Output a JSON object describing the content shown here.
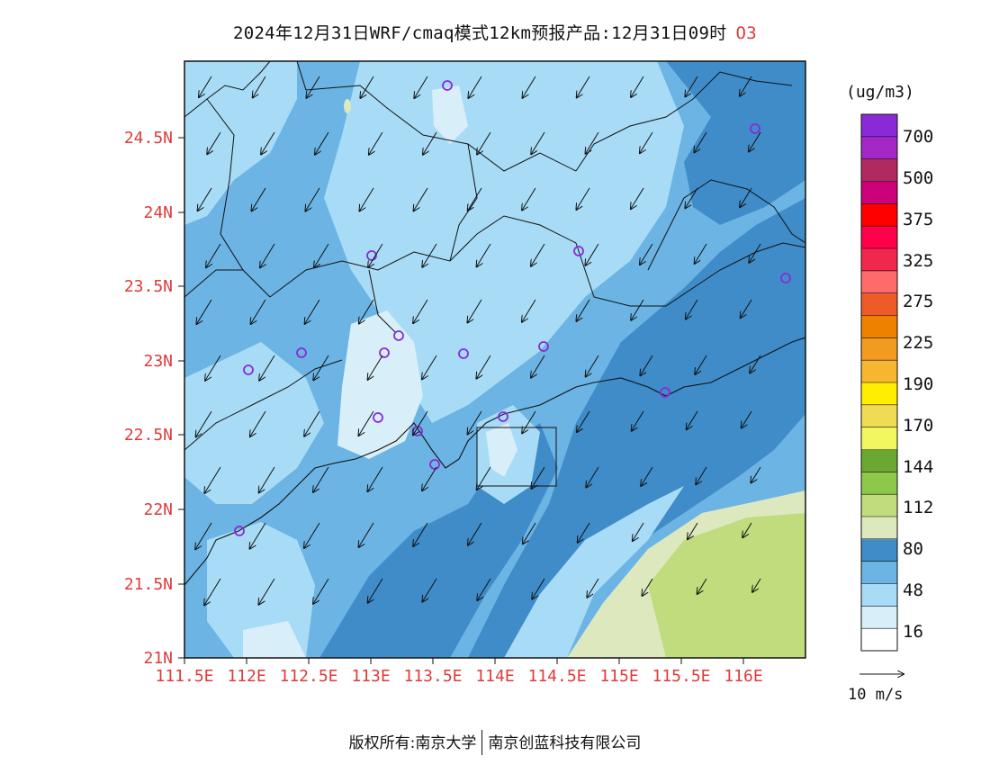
{
  "title": {
    "text": "2024年12月31日WRF/cmaq模式12km预报产品:12月31日09时",
    "species": "O3"
  },
  "map": {
    "lat_ticks": [
      "24.5N",
      "24N",
      "23.5N",
      "23N",
      "22.5N",
      "22N",
      "21.5N",
      "21N"
    ],
    "lon_ticks": [
      "111.5E",
      "112E",
      "112.5E",
      "113E",
      "113.5E",
      "114E",
      "114.5E",
      "115E",
      "115.5E",
      "116E"
    ],
    "extent": {
      "lon": [
        111.5,
        116.5
      ],
      "lat": [
        21.0,
        24.9
      ]
    },
    "wind_direction": "from northeast"
  },
  "legend": {
    "unit": "(ug/m3)",
    "labels": [
      "700",
      "500",
      "375",
      "325",
      "275",
      "225",
      "190",
      "170",
      "144",
      "112",
      "80",
      "48",
      "16"
    ],
    "colors": [
      "#ffffff",
      "#d8effa",
      "#a8dcf6",
      "#6cb4e4",
      "#3f8cc8",
      "#dde8bf",
      "#c0dc7c",
      "#8dc84a",
      "#6aa832",
      "#f2f760",
      "#f0dc54",
      "#ffee00",
      "#f6b630",
      "#f39a20",
      "#ee8200",
      "#ee5a28",
      "#ff6a6a",
      "#f0284e",
      "#ff004a",
      "#ff0000",
      "#cc0078",
      "#b02a60",
      "#a428c6",
      "#8a2ad6"
    ]
  },
  "wind_reference": {
    "label": "10 m/s"
  },
  "footer": {
    "left": "版权所有:南京大学",
    "right": "南京创蓝科技有限公司"
  }
}
